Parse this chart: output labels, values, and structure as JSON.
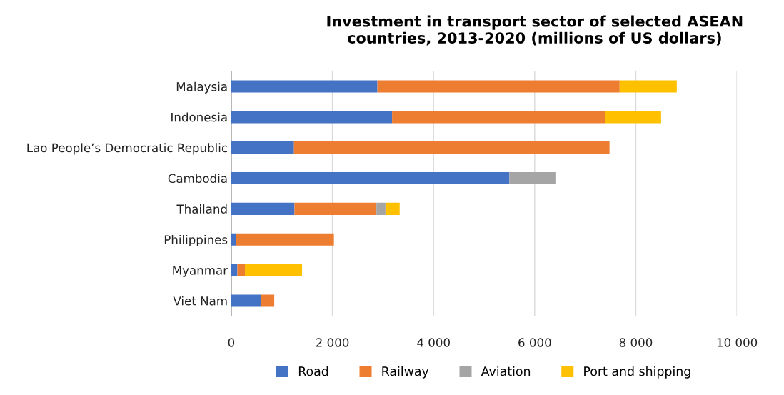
{
  "chart_data": {
    "type": "bar",
    "orientation": "horizontal",
    "stacked": true,
    "title": "Investment in transport sector of selected ASEAN\ncountries, 2013-2020 (millions of US dollars)",
    "categories": [
      "Malaysia",
      "Indonesia",
      "Lao People’s Democratic Republic",
      "Cambodia",
      "Thailand",
      "Philippines",
      "Myanmar",
      "Viet Nam"
    ],
    "series": [
      {
        "name": "Road",
        "color": "#4472c4",
        "values": [
          2890,
          3180,
          1240,
          5500,
          1250,
          90,
          120,
          580
        ]
      },
      {
        "name": "Railway",
        "color": "#ed7d31",
        "values": [
          4790,
          4220,
          6240,
          0,
          1620,
          1940,
          150,
          270
        ]
      },
      {
        "name": "Aviation",
        "color": "#a5a5a5",
        "values": [
          0,
          0,
          0,
          910,
          180,
          0,
          0,
          0
        ]
      },
      {
        "name": "Port and shipping",
        "color": "#ffc000",
        "values": [
          1130,
          1100,
          0,
          0,
          280,
          0,
          1130,
          0
        ]
      }
    ],
    "xlim": [
      0,
      10000
    ],
    "xticks": [
      0,
      {
        "value": 2000,
        "label": "2 000"
      },
      {
        "value": 4000,
        "label": "4 000"
      },
      {
        "value": 6000,
        "label": "6 000"
      },
      {
        "value": 8000,
        "label": "8 000"
      },
      {
        "value": 10000,
        "label": "10 000"
      }
    ],
    "grid": "x",
    "legend": "bottom"
  }
}
